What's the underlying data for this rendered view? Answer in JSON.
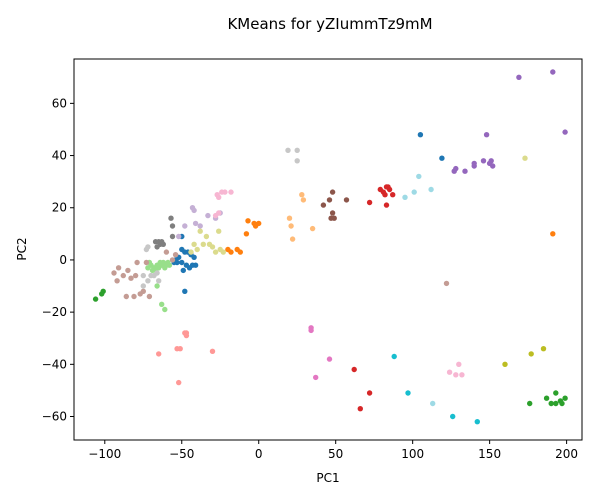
{
  "chart_data": {
    "type": "scatter",
    "title": "KMeans for yZIummTz9mM",
    "xlabel": "PC1",
    "ylabel": "PC2",
    "xlim": [
      -120,
      210
    ],
    "ylim": [
      -69,
      77
    ],
    "xticks": [
      -100,
      -50,
      0,
      50,
      100,
      150,
      200
    ],
    "yticks": [
      -60,
      -40,
      -20,
      0,
      20,
      40,
      60
    ],
    "xtick_labels": [
      "−100",
      "−50",
      "0",
      "50",
      "100",
      "150",
      "200"
    ],
    "ytick_labels": [
      "−60",
      "−40",
      "−20",
      "0",
      "20",
      "40",
      "60"
    ],
    "grid": false,
    "series": [
      {
        "color": "#1f77b4",
        "points": [
          [
            -55,
            -1
          ],
          [
            -52,
            1
          ],
          [
            -50,
            4
          ],
          [
            -48,
            3
          ],
          [
            -46,
            3
          ],
          [
            -44,
            2
          ],
          [
            -42,
            1
          ],
          [
            -41,
            -2
          ],
          [
            -43,
            -2
          ],
          [
            -45,
            -3
          ],
          [
            -47,
            -2
          ],
          [
            -49,
            -4
          ],
          [
            -50,
            -1
          ],
          [
            -53,
            -1
          ],
          [
            -54,
            0
          ],
          [
            -50,
            9
          ],
          [
            -48,
            -12
          ],
          [
            105,
            48
          ],
          [
            119,
            39
          ]
        ]
      },
      {
        "color": "#ff7f0e",
        "points": [
          [
            -20,
            4
          ],
          [
            -18,
            3
          ],
          [
            -14,
            4
          ],
          [
            -12,
            3
          ],
          [
            -8,
            10
          ],
          [
            -7,
            15
          ],
          [
            -2,
            13
          ],
          [
            0,
            14
          ],
          [
            -3,
            14
          ],
          [
            191,
            10
          ]
        ]
      },
      {
        "color": "#ffbb78",
        "points": [
          [
            20,
            16
          ],
          [
            21,
            13
          ],
          [
            22,
            8
          ],
          [
            28,
            25
          ],
          [
            29,
            23
          ],
          [
            35,
            12
          ]
        ]
      },
      {
        "color": "#2ca02c",
        "points": [
          [
            -106,
            -15
          ],
          [
            -102,
            -13
          ],
          [
            -101,
            -12
          ],
          [
            176,
            -55
          ],
          [
            187,
            -53
          ],
          [
            190,
            -55
          ],
          [
            193,
            -55
          ],
          [
            193,
            -51
          ],
          [
            196,
            -54
          ],
          [
            197,
            -55
          ],
          [
            199,
            -53
          ]
        ]
      },
      {
        "color": "#98df8a",
        "points": [
          [
            -72,
            -3
          ],
          [
            -70,
            -2
          ],
          [
            -68,
            -3
          ],
          [
            -66,
            -2
          ],
          [
            -65,
            -3
          ],
          [
            -63,
            -2
          ],
          [
            -62,
            -1
          ],
          [
            -60,
            -2
          ],
          [
            -58,
            -2
          ],
          [
            -67,
            -4
          ],
          [
            -69,
            -4
          ],
          [
            -64,
            -1
          ],
          [
            -59,
            -1
          ],
          [
            -61,
            -3
          ],
          [
            -71,
            -1
          ],
          [
            -66,
            -10
          ],
          [
            -63,
            -17
          ],
          [
            -61,
            -19
          ]
        ]
      },
      {
        "color": "#d62728",
        "points": [
          [
            62,
            -42
          ],
          [
            66,
            -57
          ],
          [
            72,
            -51
          ],
          [
            72,
            22
          ],
          [
            79,
            27
          ],
          [
            81,
            26
          ],
          [
            82,
            25
          ],
          [
            83,
            28
          ],
          [
            84,
            28
          ],
          [
            83,
            21
          ],
          [
            87,
            25
          ],
          [
            85,
            27
          ]
        ]
      },
      {
        "color": "#ff9896",
        "points": [
          [
            -65,
            -36
          ],
          [
            -53,
            -34
          ],
          [
            -52,
            -47
          ],
          [
            -51,
            -34
          ],
          [
            -48,
            -28
          ],
          [
            -47,
            -29
          ],
          [
            -47,
            -28
          ],
          [
            -30,
            -35
          ]
        ]
      },
      {
        "color": "#9467bd",
        "points": [
          [
            127,
            34
          ],
          [
            128,
            35
          ],
          [
            134,
            34
          ],
          [
            140,
            36
          ],
          [
            140,
            37
          ],
          [
            146,
            38
          ],
          [
            148,
            48
          ],
          [
            150,
            37
          ],
          [
            151,
            38
          ],
          [
            152,
            36
          ],
          [
            169,
            70
          ],
          [
            191,
            72
          ],
          [
            199,
            49
          ]
        ]
      },
      {
        "color": "#c5b0d5",
        "points": [
          [
            -52,
            9
          ],
          [
            -48,
            13
          ],
          [
            -43,
            20
          ],
          [
            -42,
            19
          ],
          [
            -41,
            14
          ],
          [
            -38,
            13
          ],
          [
            -33,
            17
          ],
          [
            -28,
            16
          ],
          [
            -25,
            18
          ]
        ]
      },
      {
        "color": "#8c564b",
        "points": [
          [
            42,
            21
          ],
          [
            46,
            23
          ],
          [
            47,
            16
          ],
          [
            48,
            18
          ],
          [
            48,
            26
          ],
          [
            49,
            16
          ],
          [
            57,
            23
          ]
        ]
      },
      {
        "color": "#c49c94",
        "points": [
          [
            -94,
            -5
          ],
          [
            -92,
            -8
          ],
          [
            -91,
            -3
          ],
          [
            -88,
            -6
          ],
          [
            -86,
            -14
          ],
          [
            -85,
            -4
          ],
          [
            -83,
            -7
          ],
          [
            -81,
            -14
          ],
          [
            -80,
            -6
          ],
          [
            -79,
            -1
          ],
          [
            -77,
            -13
          ],
          [
            -75,
            -12
          ],
          [
            -73,
            -1
          ],
          [
            -71,
            -14
          ],
          [
            -56,
            0
          ],
          [
            -54,
            2
          ],
          [
            -60,
            3
          ],
          [
            122,
            -9
          ]
        ]
      },
      {
        "color": "#e377c2",
        "points": [
          [
            34,
            -26
          ],
          [
            34,
            -27
          ],
          [
            37,
            -45
          ],
          [
            46,
            -38
          ]
        ]
      },
      {
        "color": "#f7b6d2",
        "points": [
          [
            -27,
            25
          ],
          [
            -26,
            24
          ],
          [
            -24,
            26
          ],
          [
            -22,
            26
          ],
          [
            -18,
            26
          ],
          [
            -28,
            17
          ],
          [
            -26,
            18
          ],
          [
            124,
            -43
          ],
          [
            128,
            -44
          ],
          [
            130,
            -40
          ],
          [
            132,
            -44
          ]
        ]
      },
      {
        "color": "#7f7f7f",
        "points": [
          [
            -67,
            7
          ],
          [
            -66,
            5
          ],
          [
            -65,
            7
          ],
          [
            -64,
            6
          ],
          [
            -63,
            7
          ],
          [
            -62,
            6
          ],
          [
            -57,
            16
          ],
          [
            -56,
            13
          ],
          [
            -56,
            9
          ]
        ]
      },
      {
        "color": "#c7c7c7",
        "points": [
          [
            -75,
            -6
          ],
          [
            -73,
            4
          ],
          [
            -72,
            5
          ],
          [
            -70,
            -6
          ],
          [
            -68,
            -6
          ],
          [
            -66,
            -5
          ],
          [
            -75,
            -10
          ],
          [
            -65,
            -8
          ],
          [
            -72,
            -8
          ],
          [
            19,
            42
          ],
          [
            25,
            42
          ],
          [
            25,
            38
          ]
        ]
      },
      {
        "color": "#bcbd22",
        "points": [
          [
            160,
            -40
          ],
          [
            177,
            -36
          ],
          [
            185,
            -34
          ]
        ]
      },
      {
        "color": "#dbdb8d",
        "points": [
          [
            -44,
            3
          ],
          [
            -42,
            6
          ],
          [
            -40,
            4
          ],
          [
            -38,
            11
          ],
          [
            -36,
            6
          ],
          [
            -34,
            9
          ],
          [
            -32,
            6
          ],
          [
            -30,
            5
          ],
          [
            -28,
            3
          ],
          [
            -26,
            11
          ],
          [
            -25,
            4
          ],
          [
            -23,
            3
          ],
          [
            173,
            39
          ]
        ]
      },
      {
        "color": "#17becf",
        "points": [
          [
            88,
            -37
          ],
          [
            97,
            -51
          ],
          [
            126,
            -60
          ],
          [
            142,
            -62
          ]
        ]
      },
      {
        "color": "#9edae5",
        "points": [
          [
            95,
            24
          ],
          [
            101,
            26
          ],
          [
            104,
            32
          ],
          [
            112,
            27
          ],
          [
            113,
            -55
          ]
        ]
      }
    ]
  }
}
